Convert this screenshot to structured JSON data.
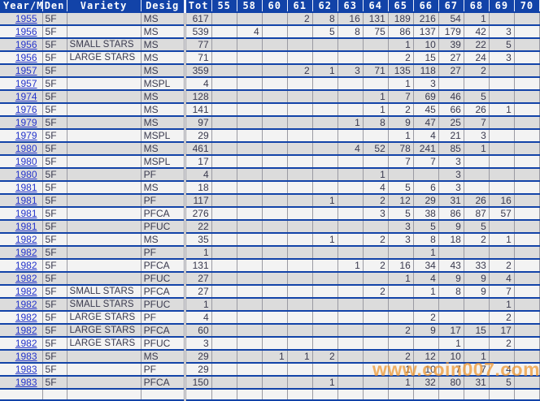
{
  "colors": {
    "header_bg": "#1243a8",
    "header_text": "#ffffff",
    "separator": "#1243a8",
    "grid_line": "#9a9aa2",
    "row_odd": "#dcdcdc",
    "row_even": "#f3f3f3",
    "link": "#2535cb",
    "text": "#3a3a4e",
    "watermark": "#f0962d"
  },
  "header": {
    "columns": [
      "Year/M",
      "Den",
      "Variety",
      "Desig",
      "Tot",
      "55",
      "58",
      "60",
      "61",
      "62",
      "63",
      "64",
      "65",
      "66",
      "67",
      "68",
      "69",
      "70"
    ]
  },
  "table": {
    "grade_columns": [
      "55",
      "58",
      "60",
      "61",
      "62",
      "63",
      "64",
      "65",
      "66",
      "67",
      "68",
      "69",
      "70"
    ],
    "rows": [
      {
        "year": "1955",
        "den": "5F",
        "variety": "",
        "desig": "MS",
        "tot": 617,
        "grades": {
          "61": 2,
          "62": 8,
          "63": 16,
          "64": 131,
          "65": 189,
          "66": 216,
          "67": 54,
          "68": 1
        }
      },
      {
        "year": "1956",
        "den": "5F",
        "variety": "",
        "desig": "MS",
        "tot": 539,
        "grades": {
          "58": 4,
          "62": 5,
          "63": 8,
          "64": 75,
          "65": 86,
          "66": 137,
          "67": 179,
          "68": 42,
          "69": 3
        }
      },
      {
        "year": "1956",
        "den": "5F",
        "variety": "SMALL STARS",
        "desig": "MS",
        "tot": 77,
        "grades": {
          "65": 1,
          "66": 10,
          "67": 39,
          "68": 22,
          "69": 5
        }
      },
      {
        "year": "1956",
        "den": "5F",
        "variety": "LARGE STARS",
        "desig": "MS",
        "tot": 71,
        "grades": {
          "65": 2,
          "66": 15,
          "67": 27,
          "68": 24,
          "69": 3
        }
      },
      {
        "year": "1957",
        "den": "5F",
        "variety": "",
        "desig": "MS",
        "tot": 359,
        "grades": {
          "61": 2,
          "62": 1,
          "63": 3,
          "64": 71,
          "65": 135,
          "66": 118,
          "67": 27,
          "68": 2
        }
      },
      {
        "year": "1957",
        "den": "5F",
        "variety": "",
        "desig": "MSPL",
        "tot": 4,
        "grades": {
          "65": 1,
          "66": 3
        }
      },
      {
        "year": "1974",
        "den": "5F",
        "variety": "",
        "desig": "MS",
        "tot": 128,
        "grades": {
          "64": 1,
          "65": 7,
          "66": 69,
          "67": 46,
          "68": 5
        }
      },
      {
        "year": "1976",
        "den": "5F",
        "variety": "",
        "desig": "MS",
        "tot": 141,
        "grades": {
          "64": 1,
          "65": 2,
          "66": 45,
          "67": 66,
          "68": 26,
          "69": 1
        }
      },
      {
        "year": "1979",
        "den": "5F",
        "variety": "",
        "desig": "MS",
        "tot": 97,
        "grades": {
          "63": 1,
          "64": 8,
          "65": 9,
          "66": 47,
          "67": 25,
          "68": 7
        }
      },
      {
        "year": "1979",
        "den": "5F",
        "variety": "",
        "desig": "MSPL",
        "tot": 29,
        "grades": {
          "65": 1,
          "66": 4,
          "67": 21,
          "68": 3
        }
      },
      {
        "year": "1980",
        "den": "5F",
        "variety": "",
        "desig": "MS",
        "tot": 461,
        "grades": {
          "63": 4,
          "64": 52,
          "65": 78,
          "66": 241,
          "67": 85,
          "68": 1
        }
      },
      {
        "year": "1980",
        "den": "5F",
        "variety": "",
        "desig": "MSPL",
        "tot": 17,
        "grades": {
          "65": 7,
          "66": 7,
          "67": 3
        }
      },
      {
        "year": "1980",
        "den": "5F",
        "variety": "",
        "desig": "PF",
        "tot": 4,
        "grades": {
          "64": 1,
          "67": 3
        }
      },
      {
        "year": "1981",
        "den": "5F",
        "variety": "",
        "desig": "MS",
        "tot": 18,
        "grades": {
          "64": 4,
          "65": 5,
          "66": 6,
          "67": 3
        }
      },
      {
        "year": "1981",
        "den": "5F",
        "variety": "",
        "desig": "PF",
        "tot": 117,
        "grades": {
          "62": 1,
          "64": 2,
          "65": 12,
          "66": 29,
          "67": 31,
          "68": 26,
          "69": 16
        }
      },
      {
        "year": "1981",
        "den": "5F",
        "variety": "",
        "desig": "PFCA",
        "tot": 276,
        "grades": {
          "64": 3,
          "65": 5,
          "66": 38,
          "67": 86,
          "68": 87,
          "69": 57
        }
      },
      {
        "year": "1981",
        "den": "5F",
        "variety": "",
        "desig": "PFUC",
        "tot": 22,
        "grades": {
          "65": 3,
          "66": 5,
          "67": 9,
          "68": 5
        }
      },
      {
        "year": "1982",
        "den": "5F",
        "variety": "",
        "desig": "MS",
        "tot": 35,
        "grades": {
          "62": 1,
          "64": 2,
          "65": 3,
          "66": 8,
          "67": 18,
          "68": 2,
          "69": 1
        }
      },
      {
        "year": "1982",
        "den": "5F",
        "variety": "",
        "desig": "PF",
        "tot": 1,
        "grades": {
          "66": 1
        }
      },
      {
        "year": "1982",
        "den": "5F",
        "variety": "",
        "desig": "PFCA",
        "tot": 131,
        "grades": {
          "63": 1,
          "64": 2,
          "65": 16,
          "66": 34,
          "67": 43,
          "68": 33,
          "69": 2
        }
      },
      {
        "year": "1982",
        "den": "5F",
        "variety": "",
        "desig": "PFUC",
        "tot": 27,
        "grades": {
          "65": 1,
          "66": 4,
          "67": 9,
          "68": 9,
          "69": 4
        }
      },
      {
        "year": "1982",
        "den": "5F",
        "variety": "SMALL STARS",
        "desig": "PFCA",
        "tot": 27,
        "grades": {
          "64": 2,
          "66": 1,
          "67": 8,
          "68": 9,
          "69": 7
        }
      },
      {
        "year": "1982",
        "den": "5F",
        "variety": "SMALL STARS",
        "desig": "PFUC",
        "tot": 1,
        "grades": {
          "69": 1
        }
      },
      {
        "year": "1982",
        "den": "5F",
        "variety": "LARGE STARS",
        "desig": "PF",
        "tot": 4,
        "grades": {
          "66": 2,
          "69": 2
        }
      },
      {
        "year": "1982",
        "den": "5F",
        "variety": "LARGE STARS",
        "desig": "PFCA",
        "tot": 60,
        "grades": {
          "65": 2,
          "66": 9,
          "67": 17,
          "68": 15,
          "69": 17
        }
      },
      {
        "year": "1982",
        "den": "5F",
        "variety": "LARGE STARS",
        "desig": "PFUC",
        "tot": 3,
        "grades": {
          "67": 1,
          "69": 2
        }
      },
      {
        "year": "1983",
        "den": "5F",
        "variety": "",
        "desig": "MS",
        "tot": 29,
        "grades": {
          "60": 1,
          "61": 1,
          "62": 2,
          "65": 2,
          "66": 12,
          "67": 10,
          "68": 1
        }
      },
      {
        "year": "1983",
        "den": "5F",
        "variety": "",
        "desig": "PF",
        "tot": 29,
        "grades": {
          "65": 1,
          "66": 10,
          "67": 7,
          "68": 7,
          "69": 4
        }
      },
      {
        "year": "1983",
        "den": "5F",
        "variety": "",
        "desig": "PFCA",
        "tot": 150,
        "grades": {
          "62": 1,
          "65": 1,
          "66": 32,
          "67": 80,
          "68": 31,
          "69": 5
        }
      }
    ]
  },
  "watermark": {
    "text": "www.coin007.com"
  }
}
